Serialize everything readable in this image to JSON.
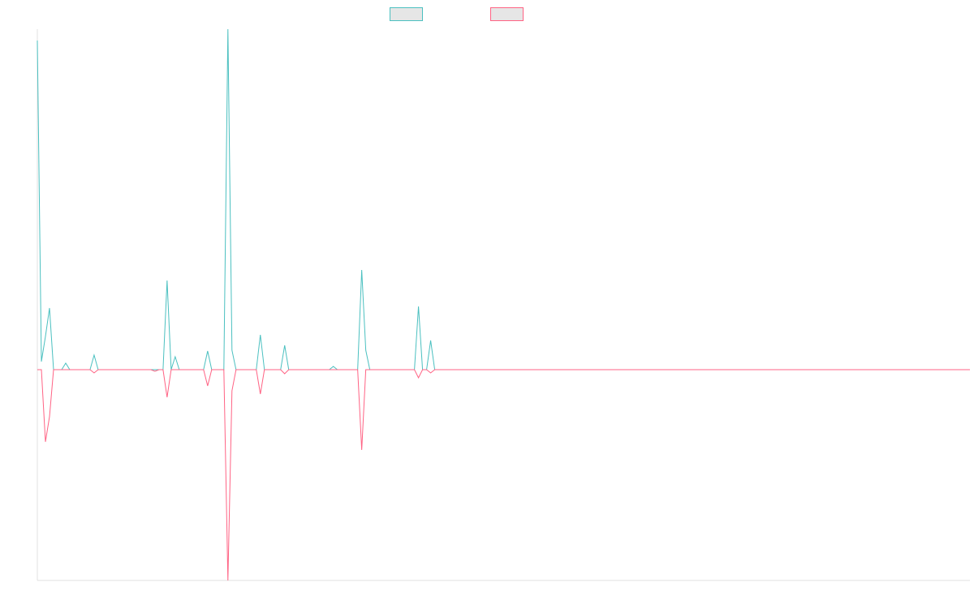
{
  "chart_data": {
    "type": "line",
    "categories": [
      null,
      null,
      null,
      null,
      null,
      null,
      null,
      null,
      null,
      null,
      null,
      null,
      null,
      null,
      null,
      null,
      null,
      null,
      null,
      null,
      null,
      null,
      null,
      null,
      null,
      null,
      null,
      null,
      null,
      null,
      null,
      null,
      null,
      null,
      null,
      null,
      null,
      null,
      null,
      null,
      null,
      null,
      null,
      null,
      null,
      null,
      null,
      null,
      null,
      null,
      null,
      null,
      null,
      null,
      null,
      null,
      null,
      null,
      null,
      null,
      null,
      null,
      null,
      null,
      null,
      null,
      null,
      null,
      null,
      null,
      null,
      null,
      null,
      null,
      null,
      null,
      null,
      null,
      null,
      null,
      null,
      null,
      null,
      null,
      null,
      null,
      null,
      null,
      null,
      null,
      null,
      null,
      null,
      null,
      null,
      null,
      null,
      null,
      null,
      null,
      null,
      null,
      null,
      null,
      null,
      null,
      null,
      null,
      null,
      null,
      null,
      null,
      null,
      null,
      null,
      null,
      null,
      null,
      null,
      null,
      null,
      null,
      null,
      null,
      null,
      null,
      null,
      null,
      null,
      null,
      null,
      null,
      null,
      null,
      null,
      null,
      null,
      null,
      null,
      null,
      null,
      null,
      null,
      null,
      null,
      null,
      null,
      null,
      null,
      null,
      null,
      null,
      null,
      null,
      null,
      null,
      null,
      null,
      null,
      null,
      null,
      null,
      null,
      null,
      null,
      null,
      null,
      null,
      null,
      null,
      null,
      null,
      null,
      null,
      null,
      null,
      null,
      null,
      null,
      null,
      null,
      null,
      null,
      null,
      null,
      null,
      null,
      null,
      null,
      null,
      null,
      null,
      null,
      null,
      null,
      null,
      null,
      null,
      null,
      null,
      null,
      null,
      null,
      null,
      null,
      null,
      null,
      null,
      null,
      null,
      null,
      null,
      null,
      null,
      null,
      null,
      null,
      null,
      null,
      null,
      null,
      null,
      null,
      null,
      null,
      null,
      null,
      null,
      null,
      null,
      null
    ],
    "series": [
      {
        "color": "#4bc0c0",
        "values": [
          406,
          10,
          41,
          76,
          0,
          0,
          0,
          8,
          0,
          0,
          0,
          0,
          0,
          0,
          18,
          0,
          0,
          0,
          0,
          0,
          0,
          0,
          0,
          0,
          0,
          0,
          0,
          0,
          0,
          0,
          0,
          0,
          110,
          0,
          16,
          0,
          0,
          0,
          0,
          0,
          0,
          0,
          23,
          0,
          0,
          0,
          0,
          420,
          24,
          0,
          0,
          0,
          0,
          0,
          0,
          43,
          0,
          0,
          0,
          0,
          0,
          30,
          0,
          0,
          0,
          0,
          0,
          0,
          0,
          0,
          0,
          0,
          0,
          4,
          0,
          0,
          0,
          0,
          0,
          0,
          123,
          24,
          0,
          0,
          0,
          0,
          0,
          0,
          0,
          0,
          0,
          0,
          0,
          0,
          78,
          0,
          0,
          36,
          0,
          0,
          0,
          0,
          0,
          0,
          0,
          0,
          0,
          0,
          0,
          0,
          0,
          0,
          0,
          0,
          0,
          0,
          0,
          0,
          0,
          0,
          0,
          0,
          0,
          0,
          0,
          0,
          0,
          0,
          0,
          0,
          0,
          0,
          0,
          0,
          0,
          0,
          0,
          0,
          0,
          0,
          0,
          0,
          0,
          0,
          0,
          0,
          0,
          0,
          0,
          0,
          0,
          0,
          0,
          0,
          0,
          0,
          0,
          0,
          0,
          0,
          0,
          0,
          0,
          0,
          0,
          0,
          0,
          0,
          0,
          0,
          0,
          0,
          0,
          0,
          0,
          0,
          0,
          0,
          0,
          0,
          0,
          0,
          0,
          0,
          0,
          0,
          0,
          0,
          0,
          0,
          0,
          0,
          0,
          0,
          0,
          0,
          0,
          0,
          0,
          0,
          0,
          0,
          0,
          0,
          0,
          0,
          0,
          0,
          0,
          0,
          0,
          0,
          0,
          0,
          0,
          0,
          0,
          0,
          0,
          0,
          0,
          0,
          0,
          0,
          0,
          0,
          0,
          0,
          0,
          0,
          0
        ]
      },
      {
        "color": "#ff6384",
        "values": [
          0,
          0,
          -89,
          -58,
          0,
          0,
          0,
          0,
          0,
          0,
          0,
          0,
          0,
          0,
          -4,
          0,
          0,
          0,
          0,
          0,
          0,
          0,
          0,
          0,
          0,
          0,
          0,
          0,
          0,
          -2,
          0,
          0,
          -34,
          0,
          0,
          0,
          0,
          0,
          0,
          0,
          0,
          0,
          -20,
          0,
          0,
          0,
          0,
          -260,
          -26,
          0,
          0,
          0,
          0,
          0,
          0,
          -30,
          0,
          0,
          0,
          0,
          0,
          -5,
          0,
          0,
          0,
          0,
          0,
          0,
          0,
          0,
          0,
          0,
          0,
          0,
          0,
          0,
          0,
          0,
          0,
          0,
          -99,
          0,
          0,
          0,
          0,
          0,
          0,
          0,
          0,
          0,
          0,
          0,
          0,
          0,
          -10,
          0,
          0,
          -4,
          0,
          0,
          0,
          0,
          0,
          0,
          0,
          0,
          0,
          0,
          0,
          0,
          0,
          0,
          0,
          0,
          0,
          0,
          0,
          0,
          0,
          0,
          0,
          0,
          0,
          0,
          0,
          0,
          0,
          0,
          0,
          0,
          0,
          0,
          0,
          0,
          0,
          0,
          0,
          0,
          0,
          0,
          0,
          0,
          0,
          0,
          0,
          0,
          0,
          0,
          0,
          0,
          0,
          0,
          0,
          0,
          0,
          0,
          0,
          0,
          0,
          0,
          0,
          0,
          0,
          0,
          0,
          0,
          0,
          0,
          0,
          0,
          0,
          0,
          0,
          0,
          0,
          0,
          0,
          0,
          0,
          0,
          0,
          0,
          0,
          0,
          0,
          0,
          0,
          0,
          0,
          0,
          0,
          0,
          0,
          0,
          0,
          0,
          0,
          0,
          0,
          0,
          0,
          0,
          0,
          0,
          0,
          0,
          0,
          0,
          0,
          0,
          0,
          0,
          0,
          0,
          0,
          0,
          0,
          0,
          0,
          0,
          0,
          0,
          0,
          0,
          0,
          0,
          0,
          0,
          0,
          0,
          0
        ]
      }
    ],
    "ylim": [
      -260,
      420
    ]
  }
}
